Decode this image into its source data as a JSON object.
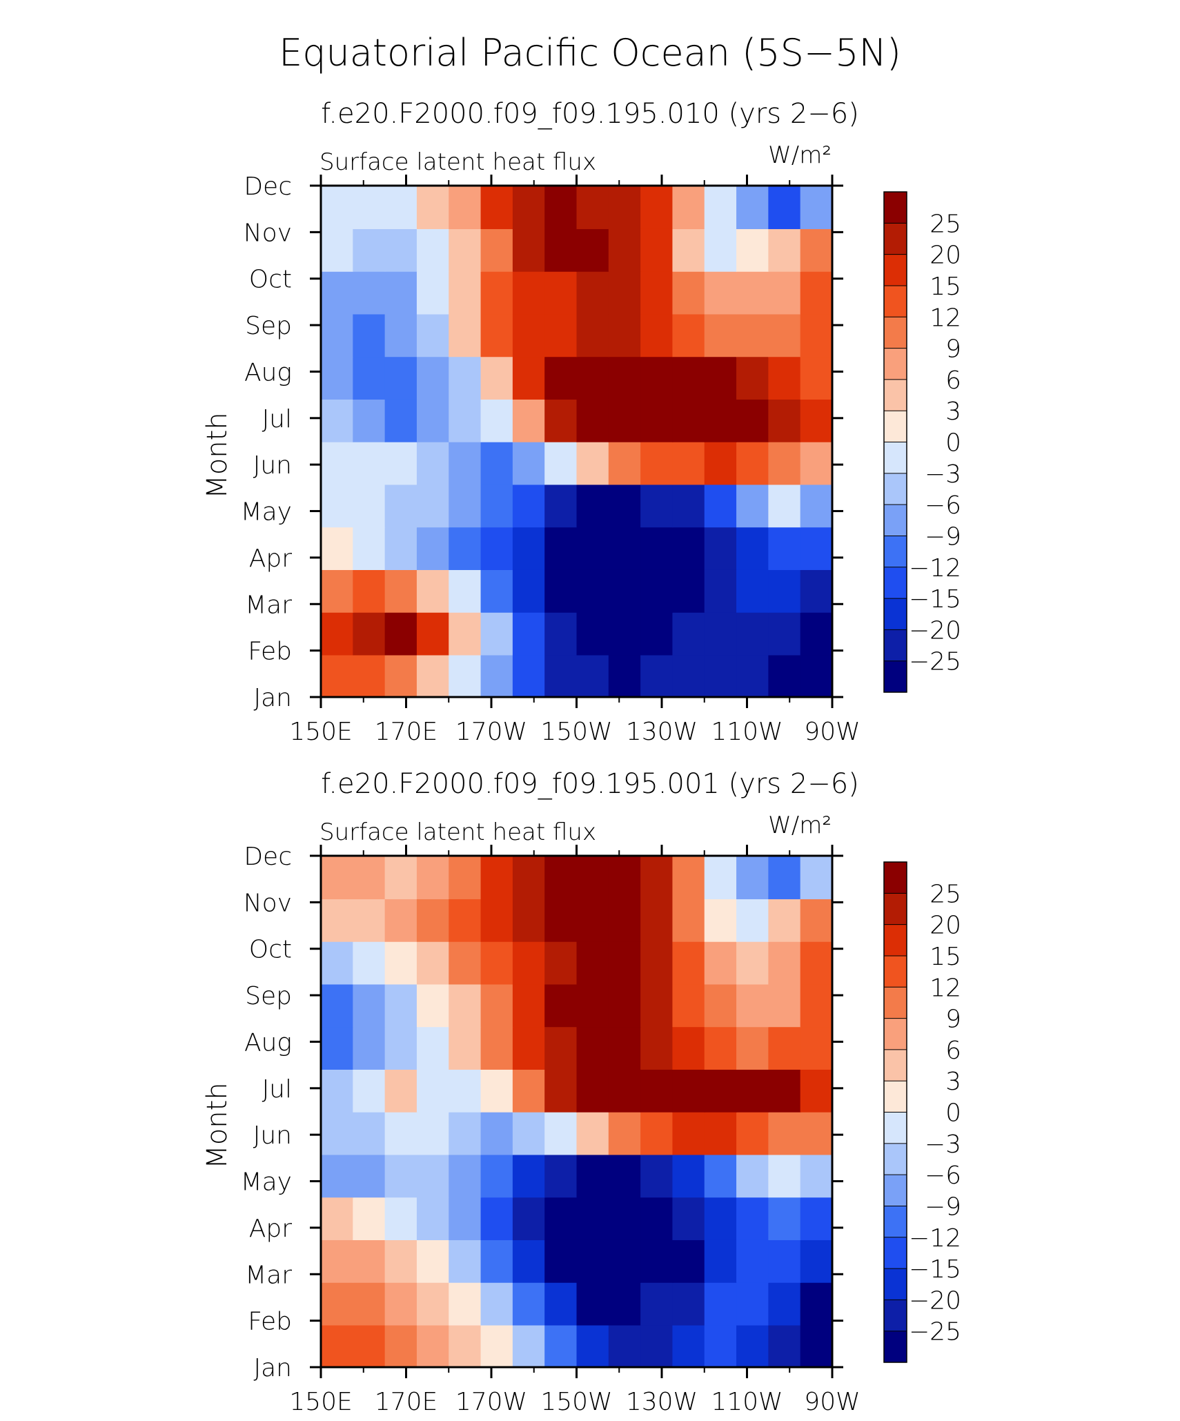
{
  "figure": {
    "title": "Equatorial Pacific Ocean (5S−5N)"
  },
  "chart_data": [
    {
      "type": "heatmap",
      "title": "f.e20.F2000.f09_f09.195.010 (yrs 2−6)",
      "left_label": "Surface latent heat flux",
      "units_label": "W/m²",
      "ylabel": "Month",
      "xlabel": "",
      "x_ticks": [
        "150E",
        "170E",
        "170W",
        "150W",
        "130W",
        "110W",
        "90W"
      ],
      "x_values": [
        150,
        170,
        190,
        210,
        230,
        250,
        270
      ],
      "xlim": [
        150,
        270
      ],
      "y_ticks": [
        "Jan",
        "Feb",
        "Mar",
        "Apr",
        "May",
        "Jun",
        "Jul",
        "Aug",
        "Sep",
        "Oct",
        "Nov",
        "Dec"
      ],
      "levels": [
        -25,
        -20,
        -15,
        -12,
        -9,
        -6,
        -3,
        0,
        3,
        6,
        9,
        12,
        15,
        20,
        25
      ],
      "colorbar_labels": [
        "25",
        "20",
        "15",
        "12",
        "9",
        "6",
        "3",
        "0",
        "−3",
        "−6",
        "−9",
        "−12",
        "−15",
        "−20",
        "−25"
      ],
      "colors": [
        "#00007f",
        "#0d1fa8",
        "#0a33d4",
        "#1f4ef0",
        "#3d72f5",
        "#7aa1f7",
        "#aac6fa",
        "#d6e6fc",
        "#fde8d8",
        "#fac3a8",
        "#f9a07c",
        "#f37b4a",
        "#f0541f",
        "#dc2e05",
        "#b31c04",
        "#8b0000"
      ],
      "grid": [
        [
          12,
          13,
          9,
          3,
          -3,
          -9,
          -15,
          -22,
          -25,
          -26,
          -25,
          -22,
          -22,
          -25,
          -26,
          -26
        ],
        [
          15,
          20,
          25,
          15,
          3,
          -6,
          -15,
          -22,
          -26,
          -26,
          -26,
          -25,
          -22,
          -22,
          -25,
          -26
        ],
        [
          9,
          12,
          9,
          3,
          -3,
          -12,
          -20,
          -26,
          -30,
          -30,
          -30,
          -26,
          -22,
          -20,
          -20,
          -22
        ],
        [
          0,
          -3,
          -6,
          -9,
          -12,
          -15,
          -20,
          -26,
          -30,
          -30,
          -30,
          -26,
          -22,
          -20,
          -15,
          -15
        ],
        [
          -3,
          -3,
          -6,
          -6,
          -9,
          -12,
          -15,
          -22,
          -26,
          -26,
          -25,
          -22,
          -15,
          -9,
          -3,
          -9
        ],
        [
          -3,
          -3,
          -3,
          -6,
          -9,
          -12,
          -9,
          -3,
          3,
          9,
          12,
          12,
          15,
          12,
          9,
          6
        ],
        [
          -6,
          -9,
          -12,
          -9,
          -6,
          -3,
          6,
          20,
          25,
          26,
          26,
          26,
          26,
          25,
          20,
          15
        ],
        [
          -9,
          -12,
          -12,
          -9,
          -6,
          3,
          15,
          25,
          26,
          26,
          26,
          25,
          25,
          20,
          15,
          12
        ],
        [
          -9,
          -12,
          -9,
          -6,
          3,
          12,
          15,
          15,
          20,
          20,
          15,
          12,
          9,
          9,
          9,
          12
        ],
        [
          -9,
          -9,
          -9,
          -3,
          3,
          12,
          15,
          15,
          20,
          20,
          15,
          9,
          6,
          6,
          6,
          12
        ],
        [
          -3,
          -6,
          -6,
          -3,
          3,
          9,
          20,
          25,
          25,
          20,
          15,
          3,
          -3,
          0,
          3,
          9
        ],
        [
          -3,
          -3,
          -3,
          3,
          6,
          15,
          20,
          25,
          20,
          20,
          15,
          6,
          -3,
          -9,
          -15,
          -9
        ]
      ]
    },
    {
      "type": "heatmap",
      "title": "f.e20.F2000.f09_f09.195.001 (yrs 2−6)",
      "left_label": "Surface latent heat flux",
      "units_label": "W/m²",
      "ylabel": "Month",
      "xlabel": "",
      "x_ticks": [
        "150E",
        "170E",
        "170W",
        "150W",
        "130W",
        "110W",
        "90W"
      ],
      "x_values": [
        150,
        170,
        190,
        210,
        230,
        250,
        270
      ],
      "xlim": [
        150,
        270
      ],
      "y_ticks": [
        "Jan",
        "Feb",
        "Mar",
        "Apr",
        "May",
        "Jun",
        "Jul",
        "Aug",
        "Sep",
        "Oct",
        "Nov",
        "Dec"
      ],
      "levels": [
        -25,
        -20,
        -15,
        -12,
        -9,
        -6,
        -3,
        0,
        3,
        6,
        9,
        12,
        15,
        20,
        25
      ],
      "colorbar_labels": [
        "25",
        "20",
        "15",
        "12",
        "9",
        "6",
        "3",
        "0",
        "−3",
        "−6",
        "−9",
        "−12",
        "−15",
        "−20",
        "−25"
      ],
      "colors": [
        "#00007f",
        "#0d1fa8",
        "#0a33d4",
        "#1f4ef0",
        "#3d72f5",
        "#7aa1f7",
        "#aac6fa",
        "#d6e6fc",
        "#fde8d8",
        "#fac3a8",
        "#f9a07c",
        "#f37b4a",
        "#f0541f",
        "#dc2e05",
        "#b31c04",
        "#8b0000"
      ],
      "grid": [
        [
          12,
          12,
          9,
          6,
          3,
          0,
          -6,
          -12,
          -20,
          -22,
          -22,
          -20,
          -15,
          -20,
          -22,
          -26
        ],
        [
          9,
          9,
          6,
          3,
          0,
          -6,
          -12,
          -20,
          -26,
          -26,
          -25,
          -22,
          -15,
          -15,
          -20,
          -26
        ],
        [
          6,
          6,
          3,
          0,
          -6,
          -12,
          -20,
          -26,
          -30,
          -30,
          -30,
          -26,
          -20,
          -15,
          -15,
          -20
        ],
        [
          3,
          0,
          -3,
          -6,
          -9,
          -15,
          -22,
          -26,
          -30,
          -30,
          -30,
          -25,
          -20,
          -15,
          -12,
          -15
        ],
        [
          -9,
          -9,
          -6,
          -6,
          -9,
          -12,
          -20,
          -25,
          -26,
          -26,
          -25,
          -20,
          -12,
          -6,
          -3,
          -6
        ],
        [
          -6,
          -6,
          -3,
          -3,
          -6,
          -9,
          -6,
          -3,
          3,
          9,
          12,
          15,
          15,
          12,
          9,
          9
        ],
        [
          -6,
          -3,
          3,
          -3,
          -3,
          0,
          9,
          20,
          25,
          26,
          26,
          25,
          25,
          26,
          25,
          15
        ],
        [
          -12,
          -9,
          -6,
          -3,
          3,
          9,
          15,
          20,
          25,
          25,
          20,
          15,
          12,
          9,
          12,
          12
        ],
        [
          -12,
          -9,
          -6,
          0,
          3,
          9,
          15,
          25,
          26,
          26,
          20,
          12,
          9,
          6,
          6,
          12
        ],
        [
          -6,
          -3,
          0,
          3,
          9,
          12,
          15,
          20,
          25,
          25,
          20,
          12,
          6,
          3,
          6,
          12
        ],
        [
          3,
          3,
          6,
          9,
          12,
          15,
          20,
          25,
          26,
          25,
          20,
          9,
          0,
          -3,
          3,
          9
        ],
        [
          6,
          6,
          3,
          6,
          9,
          15,
          20,
          25,
          26,
          25,
          20,
          9,
          -3,
          -9,
          -12,
          -6
        ]
      ]
    }
  ]
}
